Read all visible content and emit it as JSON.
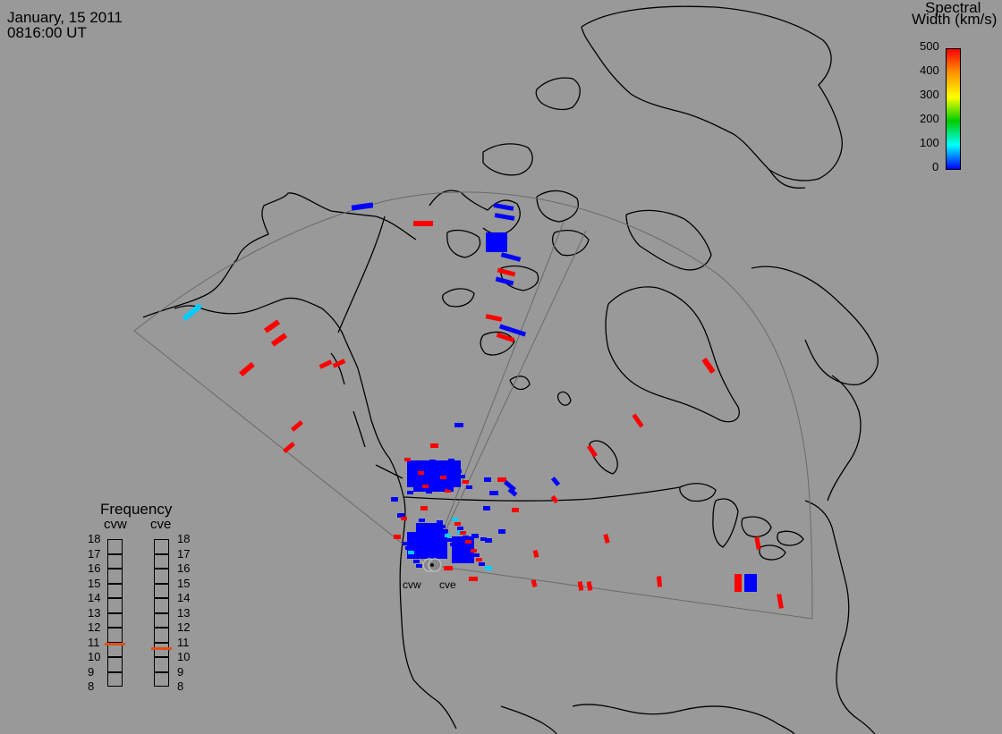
{
  "header": {
    "date": "January, 15 2011",
    "time": "0816:00 UT"
  },
  "colorbar": {
    "title_line1": "Spectral",
    "title_line2": "Width (km/s)",
    "ticks": [
      "500",
      "400",
      "300",
      "200",
      "100",
      "0"
    ],
    "range": [
      0,
      500
    ],
    "colors": [
      "#ff0000",
      "#ff8800",
      "#ffff00",
      "#00cc00",
      "#00ffff",
      "#0000ff"
    ]
  },
  "radars": {
    "cvw_label": "cvw",
    "cve_label": "cve"
  },
  "frequency_panel": {
    "title": "Frequency",
    "radar_left": "cvw",
    "radar_right": "cve",
    "ticks": [
      "18",
      "17",
      "16",
      "15",
      "14",
      "13",
      "12",
      "11",
      "10",
      "9",
      "8"
    ],
    "range_mhz": [
      8,
      18
    ],
    "cvw_freq_mhz": 10.9,
    "cve_freq_mhz": 10.6,
    "marker_color": "#e05010"
  },
  "map_style": {
    "background": "#999999",
    "coast_color": "#000000",
    "fov_color": "#666666",
    "low_width_color": "#0000ff",
    "high_width_color": "#ff0000",
    "mid_width_color": "#00ccff"
  }
}
